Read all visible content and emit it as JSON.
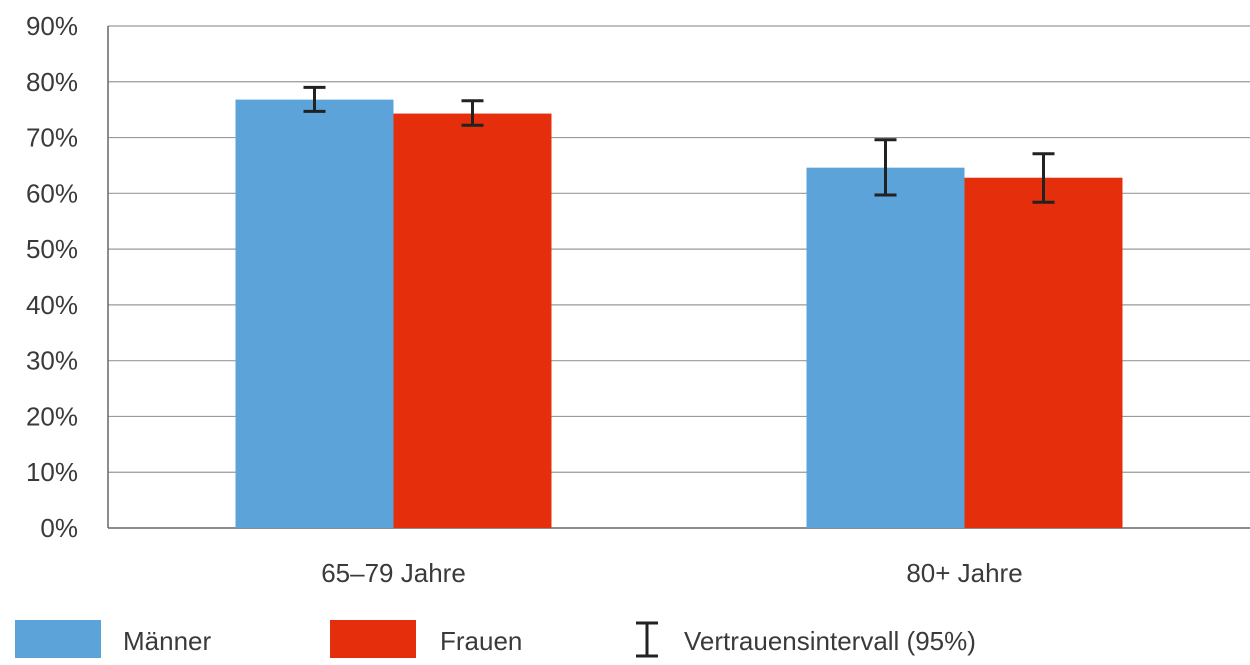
{
  "chart_data": {
    "type": "bar",
    "categories": [
      "65–79 Jahre",
      "80+ Jahre"
    ],
    "series": [
      {
        "name": "Männer",
        "color": "#5ba3d9",
        "values": [
          76.8,
          64.6
        ],
        "ci_low": [
          74.7,
          59.7
        ],
        "ci_high": [
          79.0,
          69.6
        ]
      },
      {
        "name": "Frauen",
        "color": "#e52e0b",
        "values": [
          74.3,
          62.8
        ],
        "ci_low": [
          72.2,
          58.4
        ],
        "ci_high": [
          76.6,
          67.1
        ]
      }
    ],
    "ylim": [
      0,
      90
    ],
    "yticks": [
      "0%",
      "10%",
      "20%",
      "30%",
      "40%",
      "50%",
      "60%",
      "70%",
      "80%",
      "90%"
    ],
    "grid": true,
    "legend_position": "bottom",
    "error_bar_label": "Vertrauensintervall (95%)",
    "colors": {
      "grid": "#9a9a9a",
      "axis": "#666666",
      "error_bar": "#222222",
      "text": "#3a3a3a"
    }
  }
}
